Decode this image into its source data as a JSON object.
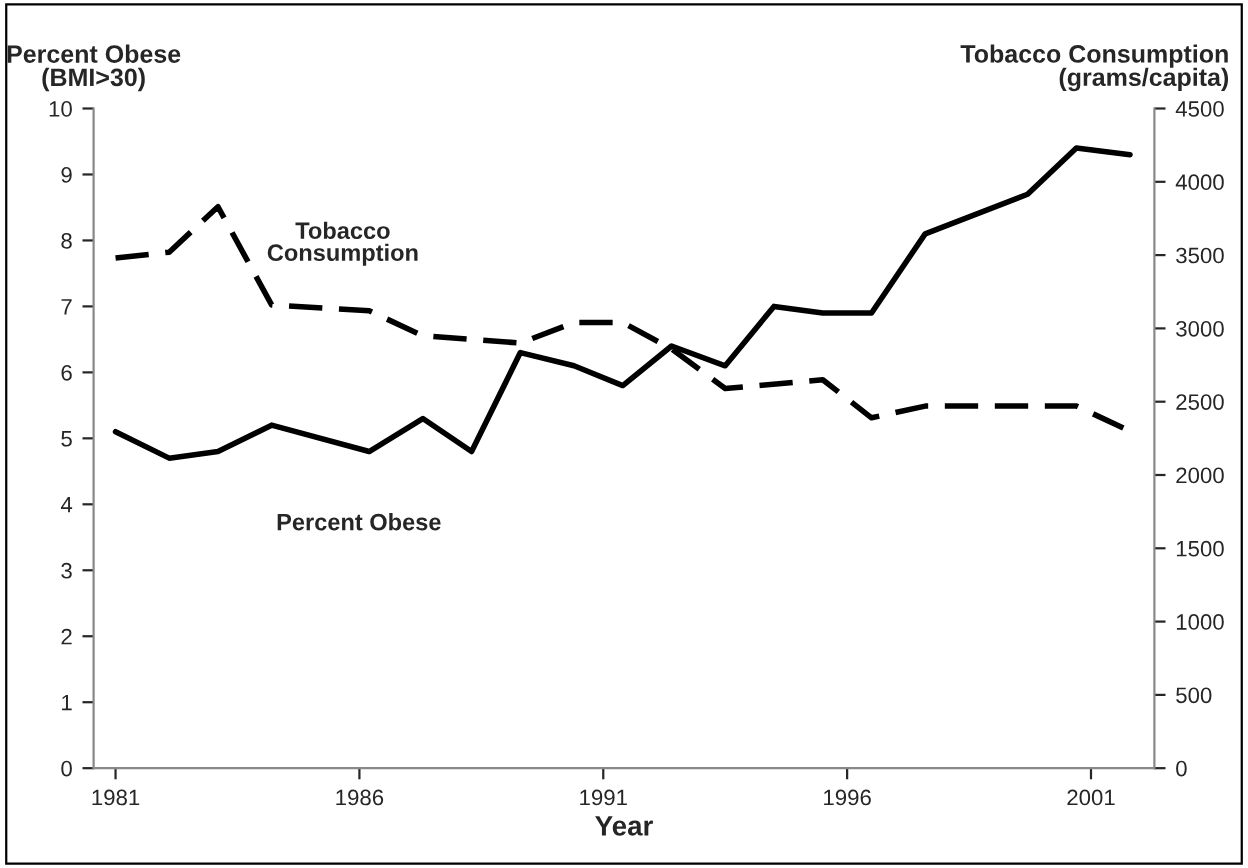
{
  "chart_data": {
    "type": "line",
    "xlabel": "Year",
    "ylabel": "Percent Obese\n(BMI>30)",
    "y2label": "Tobacco Consumption\n(grams/capita)",
    "xlim": [
      1980.55,
      2002.3
    ],
    "xticks": [
      1981,
      1986,
      1991,
      1996,
      2001
    ],
    "ylim": [
      0,
      10
    ],
    "yticks": [
      0,
      1,
      2,
      3,
      4,
      5,
      6,
      7,
      8,
      9,
      10
    ],
    "y2lim": [
      0,
      4500
    ],
    "y2ticks": [
      0,
      500,
      1000,
      1500,
      2000,
      2500,
      3000,
      3500,
      4000,
      4500
    ],
    "grid": false,
    "legend": false,
    "marker": "none",
    "annotations": [
      "Tobacco\nConsumption",
      "Percent Obese"
    ],
    "series": [
      {
        "color": "#000000",
        "line_style": "solid",
        "x": [
          1981.0,
          1982.1,
          1983.1,
          1984.2,
          1986.2,
          1987.3,
          1988.3,
          1989.3,
          1990.4,
          1991.4,
          1992.4,
          1993.5,
          1994.5,
          1995.5,
          1996.5,
          1997.6,
          1999.7,
          2000.7,
          2001.8
        ],
        "values": [
          5.1,
          4.7,
          4.8,
          5.2,
          4.8,
          5.3,
          4.8,
          6.3,
          6.1,
          5.8,
          6.4,
          6.1,
          7.0,
          6.9,
          6.9,
          8.1,
          8.7,
          9.4,
          9.3
        ]
      },
      {
        "color": "#000000",
        "line_style": "dashed",
        "axis": "y2",
        "x": [
          1981.0,
          1982.1,
          1983.1,
          1984.2,
          1986.2,
          1987.3,
          1989.3,
          1990.4,
          1991.4,
          1992.4,
          1993.5,
          1995.5,
          1996.5,
          1997.6,
          1999.7,
          2000.7,
          2001.8
        ],
        "values": [
          3480,
          3520,
          3830,
          3160,
          3120,
          2950,
          2900,
          3040,
          3040,
          2860,
          2590,
          2650,
          2390,
          2470,
          2470,
          2470,
          2300
        ]
      }
    ]
  }
}
